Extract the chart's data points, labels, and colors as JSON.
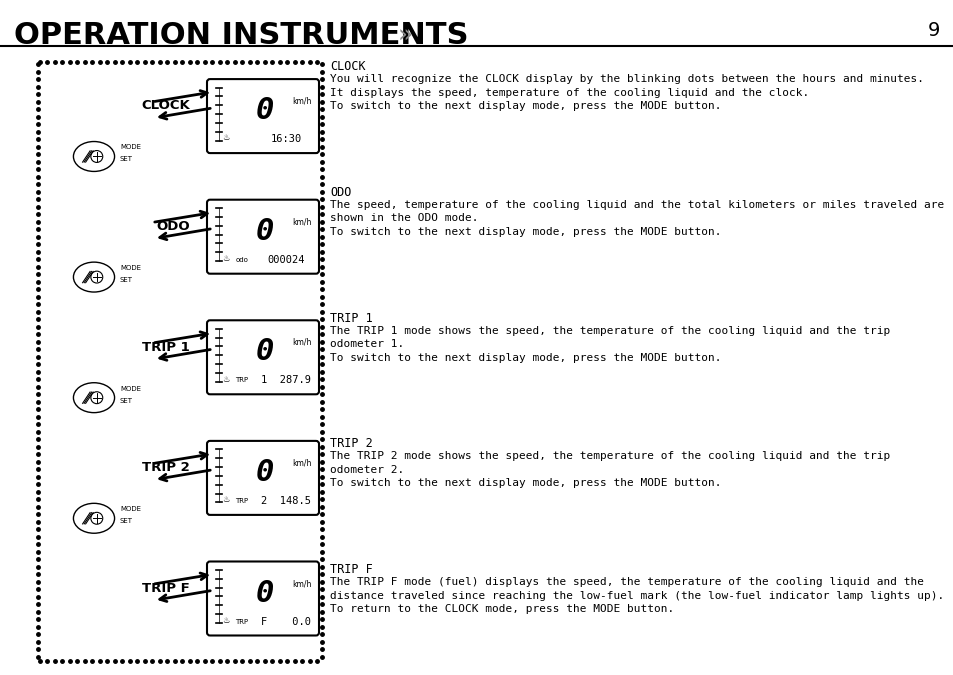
{
  "title": "OPERATION INSTRUMENTS",
  "title_arrows": "»",
  "page_number": "9",
  "bg_color": "#ffffff",
  "sections": [
    {
      "label": "CLOCK",
      "display_value": "16:30",
      "sub_label": "",
      "heading": "CLOCK",
      "body_lines": [
        "You will recognize the CLOCK display by the blinking dots between the hours and minutes.",
        "It displays the speed, temperature of the cooling liquid and the clock.",
        "To switch to the next display mode, press the MODE button."
      ]
    },
    {
      "label": "ODO",
      "display_value": "000024",
      "sub_label": "odo",
      "heading": "ODO",
      "body_lines": [
        "The speed, temperature of the cooling liquid and the total kilometers or miles traveled are",
        "shown in the ODO mode.",
        "To switch to the next display mode, press the MODE button."
      ]
    },
    {
      "label": "TRIP 1",
      "display_value": "1  287.9",
      "sub_label": "TRP",
      "heading": "TRIP 1",
      "body_lines": [
        "The TRIP 1 mode shows the speed, the temperature of the cooling liquid and the trip",
        "odometer 1.",
        "To switch to the next display mode, press the MODE button."
      ]
    },
    {
      "label": "TRIP 2",
      "display_value": "2  148.5",
      "sub_label": "TRP",
      "heading": "TRIP 2",
      "body_lines": [
        "The TRIP 2 mode shows the speed, the temperature of the cooling liquid and the trip",
        "odometer 2.",
        "To switch to the next display mode, press the MODE button."
      ]
    },
    {
      "label": "TRIP F",
      "display_value": "F    0.0",
      "sub_label": "TRP",
      "heading": "TRIP F",
      "body_lines": [
        "The TRIP F mode (fuel) displays the speed, the temperature of the cooling liquid and the",
        "distance traveled since reaching the low-fuel mark (the low-fuel indicator lamp lights up).",
        "To return to the CLOCK mode, press the MODE button."
      ]
    }
  ]
}
